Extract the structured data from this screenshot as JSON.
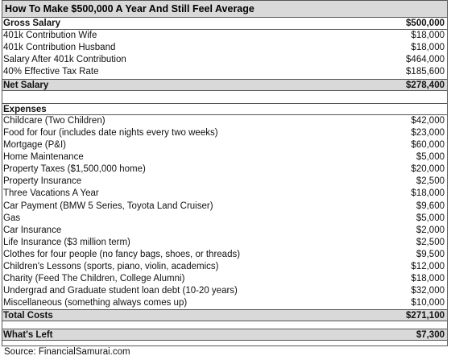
{
  "title": "How To Make $500,000 A Year And Still Feel Average",
  "income": {
    "header": {
      "label": "Gross Salary",
      "value": "$500,000"
    },
    "items": [
      {
        "label": "401k Contribution Wife",
        "value": "$18,000"
      },
      {
        "label": "401k Contribution Husband",
        "value": "$18,000"
      },
      {
        "label": "Salary After 401k Contribution",
        "value": "$464,000"
      },
      {
        "label": "40% Effective Tax Rate",
        "value": "$185,600"
      }
    ],
    "net": {
      "label": "Net Salary",
      "value": "$278,400"
    }
  },
  "expenses": {
    "header": {
      "label": "Expenses"
    },
    "items": [
      {
        "label": "Childcare (Two Children)",
        "value": "$42,000"
      },
      {
        "label": "Food for four (includes date nights every two weeks)",
        "value": "$23,000"
      },
      {
        "label": "Mortgage (P&I)",
        "value": "$60,000"
      },
      {
        "label": "Home Maintenance",
        "value": "$5,000"
      },
      {
        "label": "Property Taxes ($1,500,000 home)",
        "value": "$20,000"
      },
      {
        "label": "Property Insurance",
        "value": "$2,500"
      },
      {
        "label": "Three Vacations A Year",
        "value": "$18,000"
      },
      {
        "label": "Car Payment (BMW 5 Series, Toyota Land Cruiser)",
        "value": "$9,600"
      },
      {
        "label": "Gas",
        "value": "$5,000"
      },
      {
        "label": "Car Insurance",
        "value": "$2,000"
      },
      {
        "label": "Life Insurance ($3 million term)",
        "value": "$2,500"
      },
      {
        "label": "Clothes for four people (no fancy bags, shoes, or threads)",
        "value": "$9,500"
      },
      {
        "label": "Children's Lessons (sports, piano, violin, academics)",
        "value": "$12,000"
      },
      {
        "label": "Charity (Feed The Children, College Alumni)",
        "value": "$18,000"
      },
      {
        "label": "Undergrad and Graduate student loan debt (10-20 years)",
        "value": "$32,000"
      },
      {
        "label": "Miscellaneous (something always comes up)",
        "value": "$10,000"
      }
    ],
    "total": {
      "label": "Total Costs",
      "value": "$271,100"
    }
  },
  "whats_left": {
    "label": "What's Left",
    "value": "$7,300"
  },
  "source": "Source: FinancialSamurai.com"
}
